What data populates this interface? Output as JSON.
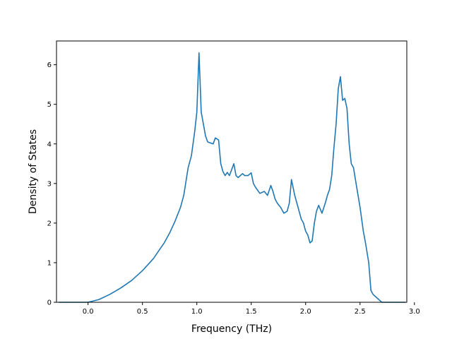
{
  "chart_data": {
    "type": "line",
    "title": "",
    "xlabel": "Frequency (THz)",
    "ylabel": "Density of States",
    "xlim": [
      -0.29,
      2.93
    ],
    "ylim": [
      0,
      6.6
    ],
    "xticks": [
      0.0,
      0.5,
      1.0,
      1.5,
      2.0,
      2.5,
      3.0
    ],
    "xtick_labels": [
      "0.0",
      "0.5",
      "1.0",
      "1.5",
      "2.0",
      "2.5",
      "3.0"
    ],
    "yticks": [
      0,
      1,
      2,
      3,
      4,
      5,
      6
    ],
    "ytick_labels": [
      "0",
      "1",
      "2",
      "3",
      "4",
      "5",
      "6"
    ],
    "grid": false,
    "line_color": "#1f77b4",
    "series": [
      {
        "x": [
          -0.27,
          -0.1,
          0.0,
          0.1,
          0.2,
          0.3,
          0.4,
          0.5,
          0.6,
          0.65,
          0.7,
          0.75,
          0.8,
          0.85,
          0.88,
          0.92,
          0.95,
          0.98,
          1.0,
          1.02,
          1.04,
          1.06,
          1.08,
          1.1,
          1.15,
          1.17,
          1.2,
          1.22,
          1.24,
          1.26,
          1.28,
          1.3,
          1.34,
          1.36,
          1.38,
          1.42,
          1.44,
          1.47,
          1.5,
          1.52,
          1.54,
          1.58,
          1.62,
          1.65,
          1.68,
          1.7,
          1.72,
          1.74,
          1.77,
          1.8,
          1.83,
          1.85,
          1.87,
          1.9,
          1.93,
          1.96,
          1.98,
          2.0,
          2.02,
          2.04,
          2.06,
          2.08,
          2.1,
          2.12,
          2.15,
          2.18,
          2.2,
          2.22,
          2.24,
          2.26,
          2.28,
          2.3,
          2.32,
          2.34,
          2.36,
          2.38,
          2.4,
          2.42,
          2.44,
          2.47,
          2.5,
          2.53,
          2.55,
          2.58,
          2.6,
          2.62,
          2.64,
          2.7,
          2.8,
          2.92
        ],
        "y": [
          0.0,
          0.0,
          0.0,
          0.07,
          0.2,
          0.36,
          0.55,
          0.8,
          1.1,
          1.3,
          1.5,
          1.75,
          2.05,
          2.4,
          2.7,
          3.4,
          3.7,
          4.3,
          4.8,
          6.3,
          4.8,
          4.5,
          4.2,
          4.05,
          4.0,
          4.15,
          4.1,
          3.5,
          3.3,
          3.2,
          3.28,
          3.2,
          3.5,
          3.2,
          3.15,
          3.25,
          3.2,
          3.2,
          3.27,
          3.0,
          2.9,
          2.75,
          2.8,
          2.7,
          2.95,
          2.8,
          2.6,
          2.5,
          2.4,
          2.25,
          2.3,
          2.5,
          3.1,
          2.7,
          2.4,
          2.1,
          2.0,
          1.8,
          1.7,
          1.5,
          1.55,
          2.0,
          2.3,
          2.45,
          2.25,
          2.5,
          2.7,
          2.85,
          3.2,
          3.9,
          4.5,
          5.4,
          5.7,
          5.1,
          5.15,
          4.9,
          4.0,
          3.5,
          3.4,
          2.9,
          2.4,
          1.8,
          1.5,
          1.0,
          0.3,
          0.2,
          0.15,
          0.0,
          0.0,
          0.0
        ]
      }
    ]
  }
}
